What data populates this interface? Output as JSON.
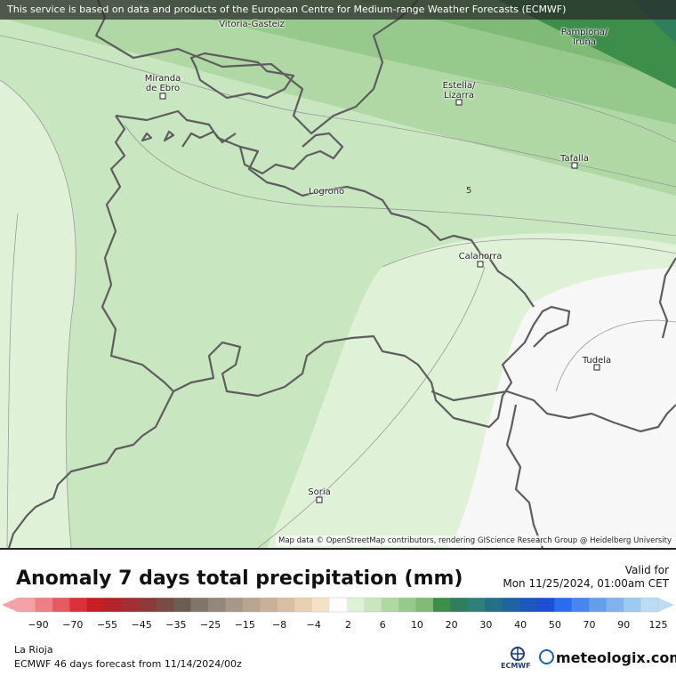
{
  "banner": "This service is based on data and products of the European Centre for Medium-range Weather Forecasts (ECMWF)",
  "cities": [
    {
      "id": "vitoria",
      "name": "Vitoria-Gasteiz"
    },
    {
      "id": "pamplona",
      "name": "Pamplona/\nIruña"
    },
    {
      "id": "miranda",
      "name": "Miranda\nde Ebro"
    },
    {
      "id": "estella",
      "name": "Estella/\nLizarra"
    },
    {
      "id": "tafalla",
      "name": "Tafalla"
    },
    {
      "id": "logrono",
      "name": "Logroño"
    },
    {
      "id": "calahorra",
      "name": "Calahorra"
    },
    {
      "id": "tudela",
      "name": "Tudela"
    },
    {
      "id": "soria",
      "name": "Soria"
    }
  ],
  "contour_label": "5",
  "attribution": "Map data © OpenStreetMap contributors, rendering GIScience Research Group @ Heidelberg University",
  "title": "Anomaly 7 days total precipitation (mm)",
  "valid_label": "Valid for",
  "valid_time": "Mon 11/25/2024, 01:00am CET",
  "legend": {
    "colors": [
      "#f6a1a6",
      "#ee7f85",
      "#e65a62",
      "#dd2f39",
      "#c51e23",
      "#b2252b",
      "#a22f33",
      "#8e3a3b",
      "#7a4a45",
      "#6b5d50",
      "#82766a",
      "#95877b",
      "#a89888",
      "#b9a48f",
      "#c8b198",
      "#d8bfa3",
      "#e8cfb1",
      "#f4e2c8",
      "#ffffff",
      "#dff2d8",
      "#c8e6bf",
      "#b0d8a4",
      "#98c98c",
      "#7fba76",
      "#3d8e4a",
      "#2f7e5c",
      "#2c7f7b",
      "#226f88",
      "#1d64a0",
      "#1b57bd",
      "#1f4fd6",
      "#2a6cf0",
      "#4686ee",
      "#649de8",
      "#80b3ec",
      "#9ecaf0",
      "#bcdcf4"
    ],
    "ticks": [
      "−90",
      "−70",
      "−55",
      "−45",
      "−35",
      "−25",
      "−15",
      "−8",
      "−4",
      "2",
      "6",
      "10",
      "20",
      "30",
      "40",
      "50",
      "70",
      "90",
      "125"
    ]
  },
  "region": "La Rioja",
  "model": "ECMWF 46 days forecast from  11/14/2024/00z",
  "brand": "meteologix.com",
  "ecmwf_logo_text": "ECMWF"
}
